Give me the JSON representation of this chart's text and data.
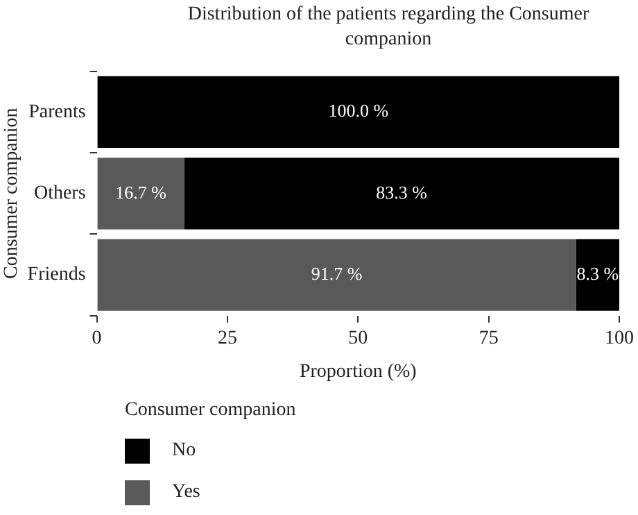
{
  "chart_data": {
    "type": "bar",
    "title": "Distribution of the patients regarding the Consumer companion",
    "xlabel": "Proportion (%)",
    "ylabel": "Consumer companion",
    "legend_title": "Consumer companion",
    "orientation": "horizontal",
    "stacked": true,
    "categories": [
      "Parents",
      "Others",
      "Friends"
    ],
    "series": [
      {
        "name": "Yes",
        "color": "#595959",
        "values": [
          0,
          16.7,
          91.7
        ],
        "value_labels": [
          null,
          "16.7 %",
          "91.7 %"
        ]
      },
      {
        "name": "No",
        "color": "#000000",
        "values": [
          100,
          83.3,
          8.3
        ],
        "value_labels": [
          "100.0 %",
          "83.3 %",
          "8.3 %"
        ]
      }
    ],
    "xlim": [
      0,
      100
    ],
    "xticks": [
      0,
      25,
      50,
      75,
      100
    ],
    "grid": false,
    "legend": "bottom"
  }
}
